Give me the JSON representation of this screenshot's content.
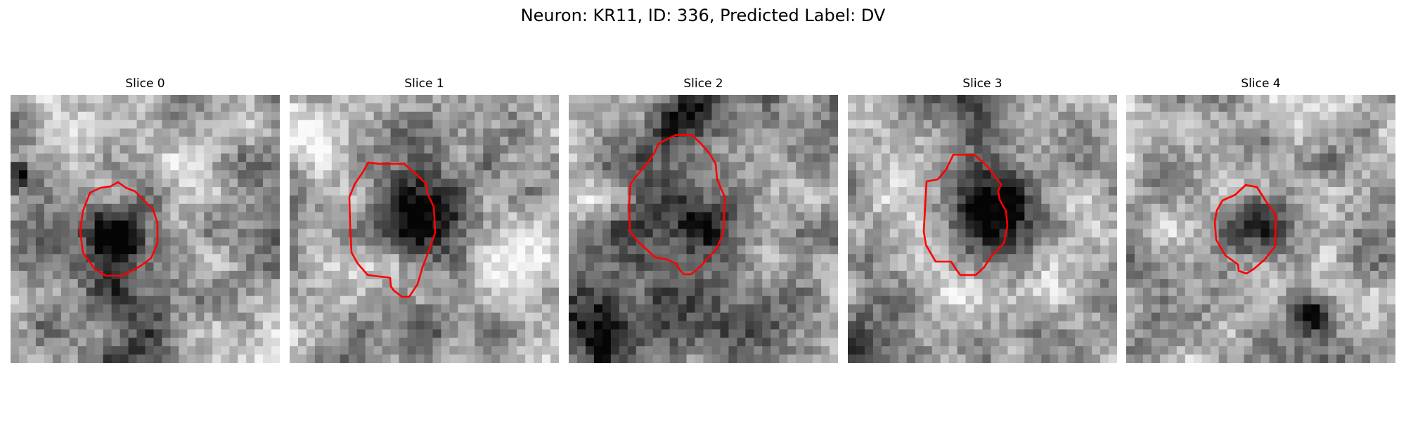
{
  "figure": {
    "title": "Neuron: KR11, ID: 336, Predicted Label: DV"
  },
  "colors": {
    "contour": "#ff0000",
    "background": "#ffffff"
  },
  "slices": [
    {
      "title": "Slice 0"
    },
    {
      "title": "Slice 1"
    },
    {
      "title": "Slice 2"
    },
    {
      "title": "Slice 3"
    },
    {
      "title": "Slice 4"
    }
  ]
}
